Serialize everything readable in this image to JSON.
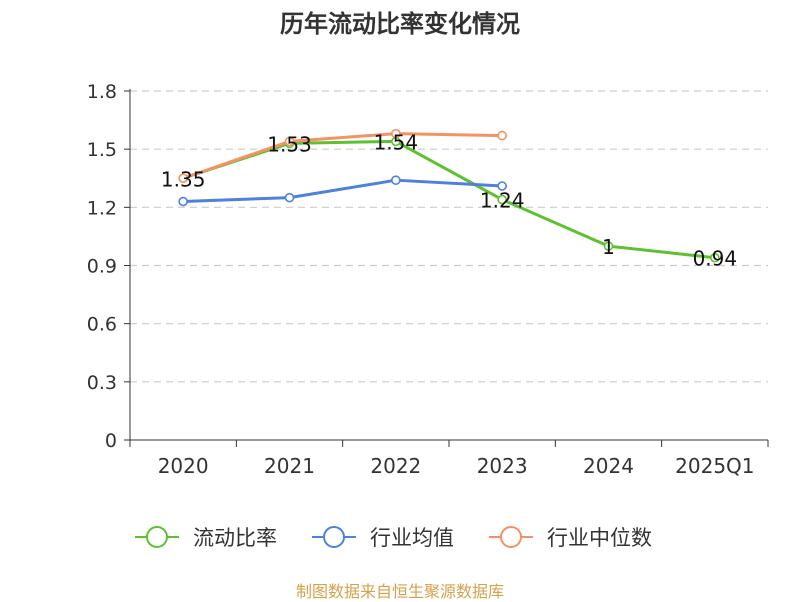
{
  "chart_data": {
    "type": "line",
    "title": "历年流动比率变化情况",
    "categories": [
      "2020",
      "2021",
      "2022",
      "2023",
      "2024",
      "2025Q1"
    ],
    "ylim": [
      0,
      1.8
    ],
    "yticks": [
      "0",
      "0.3",
      "0.6",
      "0.9",
      "1.2",
      "1.5",
      "1.8"
    ],
    "grid": true,
    "legend_position": "bottom",
    "series": [
      {
        "name": "流动比率",
        "color": "#5ec12f",
        "values": [
          1.35,
          1.53,
          1.54,
          1.24,
          1.0,
          0.94
        ],
        "labels": [
          "1.35",
          "1.53",
          "1.54",
          "1.24",
          "1",
          "0.94"
        ]
      },
      {
        "name": "行业均值",
        "color": "#4e80de",
        "values": [
          1.23,
          1.25,
          1.34,
          1.31,
          null,
          null
        ]
      },
      {
        "name": "行业中位数",
        "color": "#f59264",
        "values": [
          1.35,
          1.54,
          1.58,
          1.57,
          null,
          null
        ]
      }
    ]
  },
  "source_note": "制图数据来自恒生聚源数据库"
}
